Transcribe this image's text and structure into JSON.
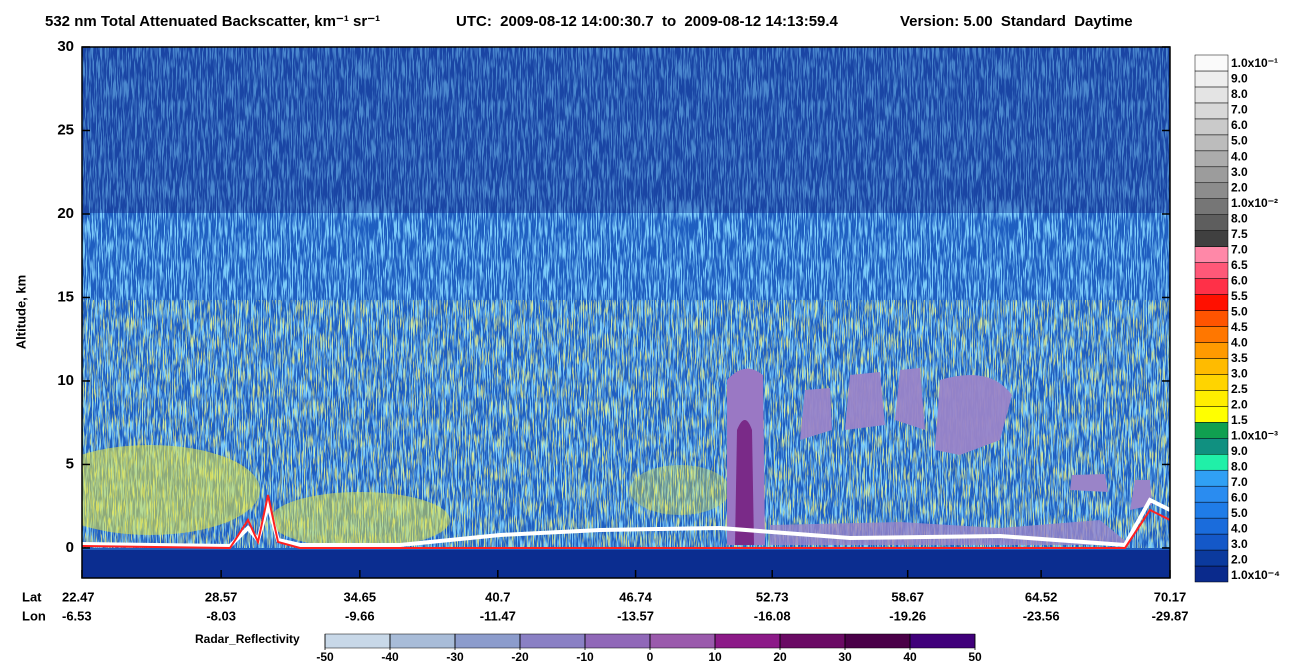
{
  "chart_data": {
    "type": "curtain",
    "title": "532 nm Total Attenuated Backscatter, km⁻¹ sr⁻¹",
    "subtitle": "UTC:  2009-08-12 14:00:30.7  to  2009-08-12 14:13:59.4",
    "version": "Version: 5.00  Standard  Daytime",
    "ylabel": "Altitude, km",
    "ylim": [
      -1.8,
      30
    ],
    "yticks": [
      0,
      5,
      10,
      15,
      20,
      25,
      30
    ],
    "xlim": [
      22.47,
      70.17
    ],
    "x_row_labels": [
      "Lat",
      "Lon"
    ],
    "xticks": [
      22.47,
      28.57,
      34.65,
      40.7,
      46.74,
      52.73,
      58.67,
      64.52,
      70.17
    ],
    "lon_labels": [
      -6.53,
      -8.03,
      -9.66,
      -11.47,
      -13.57,
      -16.08,
      -19.26,
      -23.56,
      -29.87
    ],
    "colorbar": {
      "labels": [
        "1.0x10⁻⁴",
        "2.0",
        "3.0",
        "4.0",
        "5.0",
        "6.0",
        "7.0",
        "8.0",
        "9.0",
        "1.0x10⁻³",
        "1.5",
        "2.0",
        "2.5",
        "3.0",
        "3.5",
        "4.0",
        "4.5",
        "5.0",
        "5.5",
        "6.0",
        "6.5",
        "7.0",
        "7.5",
        "8.0",
        "1.0x10⁻²",
        "2.0",
        "3.0",
        "4.0",
        "5.0",
        "6.0",
        "7.0",
        "8.0",
        "9.0",
        "1.0x10⁻¹"
      ],
      "colors": [
        "#0a2a8c",
        "#0b3a9e",
        "#1458c8",
        "#1a6cdc",
        "#1f7ce8",
        "#2a8cf0",
        "#30a0f4",
        "#20f0a8",
        "#109080",
        "#10a050",
        "#ffff00",
        "#ffee00",
        "#ffd400",
        "#ffbb00",
        "#ff9a00",
        "#ff7700",
        "#ff5400",
        "#ff1000",
        "#ff3048",
        "#ff5878",
        "#ff88a8",
        "#404040",
        "#5e5e5e",
        "#767676",
        "#8c8c8c",
        "#9c9c9c",
        "#acacac",
        "#bcbcbc",
        "#cacaca",
        "#d8d8d8",
        "#e4e4e4",
        "#eeeeee",
        "#fafafa"
      ]
    },
    "radar_colorbar": {
      "label": "Radar_Reflectivity",
      "ticks": [
        -50,
        -40,
        -30,
        -20,
        -10,
        0,
        10,
        20,
        30,
        40,
        50
      ],
      "colors": [
        "#c8d8e8",
        "#a8bcd8",
        "#8c9ccc",
        "#8a80c4",
        "#9068b8",
        "#9a5aac",
        "#8c1a88",
        "#6a0a64",
        "#4a0048",
        "#40007a"
      ]
    }
  }
}
